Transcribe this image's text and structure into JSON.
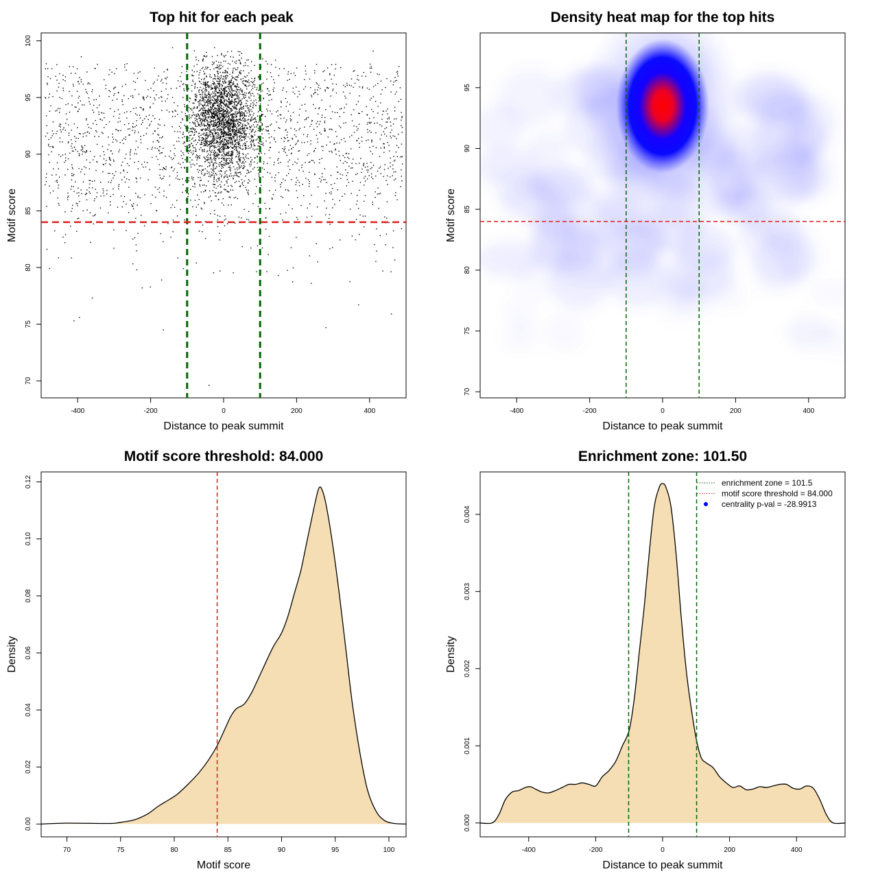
{
  "chart_data": [
    {
      "type": "scatter",
      "title": "Top hit for each peak",
      "xlabel": "Distance to peak summit",
      "ylabel": "Motif score",
      "xlim": [
        -500,
        500
      ],
      "ylim": [
        68.5,
        100.7
      ],
      "xticks": [
        -400,
        -200,
        0,
        200,
        400
      ],
      "yticks": [
        70,
        75,
        80,
        85,
        90,
        95,
        100
      ],
      "vlines": [
        -100,
        100
      ],
      "hline": 84,
      "colors": {
        "points": "#000000",
        "vlines": "#006400",
        "hline": "#dc1e1e"
      },
      "description": "Dense cluster centred near x=0, y~93 (sd ~45 in x, ~2.6 in y) over a uniform background of points spanning x -490..490 and y ~77..98; isolated points near (-165, 74.5), (-40, 69.6), (280, 74.7), (460, 76)",
      "points": [
        [
          -165,
          74.5
        ],
        [
          -40,
          69.6
        ],
        [
          280,
          74.7
        ],
        [
          460,
          75.9
        ],
        [
          -410,
          75.3
        ],
        [
          -395,
          75.6
        ],
        [
          370,
          76.7
        ],
        [
          -360,
          77.3
        ],
        [
          410,
          99.1
        ],
        [
          -25,
          99.4
        ],
        [
          -140,
          99.4
        ],
        [
          -390,
          98.6
        ],
        [
          -170,
          78.9
        ],
        [
          -110,
          79.9
        ],
        [
          -75,
          80.4
        ],
        [
          -10,
          79.7
        ],
        [
          150,
          79.3
        ],
        [
          240,
          78.6
        ]
      ],
      "cluster": {
        "x_center": 0,
        "y_center": 93,
        "x_sd": 45,
        "y_sd": 2.6,
        "n": 2400
      },
      "background": {
        "x_range": [
          -490,
          490
        ],
        "y_range": [
          77,
          98
        ],
        "n": 1900
      }
    },
    {
      "type": "heatmap",
      "title": "Density heat map for the top hits",
      "xlabel": "Distance to peak summit",
      "ylabel": "Motif score",
      "xlim": [
        -500,
        500
      ],
      "ylim": [
        69.5,
        99.5
      ],
      "xticks": [
        -400,
        -200,
        0,
        200,
        400
      ],
      "yticks": [
        70,
        75,
        80,
        85,
        90,
        95
      ],
      "vlines": [
        -100,
        100
      ],
      "hline": 84,
      "peak": {
        "x": 0,
        "y": 93.5
      },
      "colors": {
        "low": "#ffffff",
        "mid": "#0000ff",
        "high": "#ff0000",
        "vlines": "#006400",
        "hline": "#dc1e1e"
      }
    },
    {
      "type": "area",
      "title": "Motif score threshold: 84.000",
      "xlabel": "Motif score",
      "ylabel": "Density",
      "xlim": [
        67.6,
        101.6
      ],
      "ylim": [
        -0.0045,
        0.1235
      ],
      "xticks": [
        70,
        75,
        80,
        85,
        90,
        95,
        100
      ],
      "yticks": [
        0.0,
        0.02,
        0.04,
        0.06,
        0.08,
        0.1,
        0.12
      ],
      "ytick_labels": [
        "0.00",
        "0.02",
        "0.04",
        "0.06",
        "0.08",
        "0.10",
        "0.12"
      ],
      "vline": 84,
      "colors": {
        "fill": "#f5deb3",
        "line": "#000000",
        "vline": "#dc1e1e"
      },
      "x": [
        67.6,
        70,
        74,
        75,
        76.3,
        77.5,
        78.5,
        79.5,
        80.3,
        81.3,
        82.3,
        83.2,
        84,
        84.8,
        85.3,
        85.8,
        86.5,
        87.2,
        88.2,
        89.2,
        90,
        90.6,
        91.2,
        91.8,
        92.3,
        92.8,
        93.2,
        93.5,
        93.8,
        94.2,
        94.8,
        95.4,
        96,
        96.6,
        97.3,
        98,
        98.8,
        99.6,
        100.5,
        101.6
      ],
      "y": [
        0.0,
        0.0003,
        0.0002,
        0.0006,
        0.0015,
        0.0035,
        0.0062,
        0.0085,
        0.0105,
        0.014,
        0.018,
        0.0225,
        0.0275,
        0.034,
        0.038,
        0.0405,
        0.042,
        0.046,
        0.054,
        0.062,
        0.067,
        0.073,
        0.081,
        0.089,
        0.098,
        0.107,
        0.114,
        0.118,
        0.117,
        0.111,
        0.097,
        0.08,
        0.061,
        0.042,
        0.025,
        0.012,
        0.0045,
        0.0012,
        0.0002,
        0.0
      ]
    },
    {
      "type": "area",
      "title": "Enrichment zone: 101.50",
      "xlabel": "Distance to peak summit",
      "ylabel": "Density",
      "xlim": [
        -545,
        545
      ],
      "ylim": [
        -0.00018,
        0.00455
      ],
      "xticks": [
        -400,
        -200,
        0,
        200,
        400
      ],
      "yticks": [
        0.0,
        0.001,
        0.002,
        0.003,
        0.004
      ],
      "ytick_labels": [
        "0.000",
        "0.001",
        "0.002",
        "0.003",
        "0.004"
      ],
      "vlines": [
        -101.5,
        101.5
      ],
      "colors": {
        "fill": "#f5deb3",
        "line": "#000000",
        "vlines": "#006400",
        "threshold": "#dc1e1e",
        "marker": "#0000ff"
      },
      "legend": [
        {
          "label": "enrichment zone = 101.5",
          "style": "dotted",
          "color": "#006400"
        },
        {
          "label": "motif score threshold = 84.000",
          "style": "dotted",
          "color": "#dc1e1e"
        },
        {
          "label": "centrality p-val = -28.9913",
          "style": "point",
          "color": "#0000ff"
        }
      ],
      "legend_position": "top-right",
      "x": [
        -545,
        -510,
        -490,
        -470,
        -450,
        -430,
        -410,
        -395,
        -380,
        -360,
        -340,
        -320,
        -300,
        -280,
        -260,
        -240,
        -220,
        -200,
        -180,
        -160,
        -140,
        -120,
        -100,
        -85,
        -70,
        -55,
        -40,
        -25,
        -10,
        0,
        10,
        25,
        40,
        55,
        70,
        85,
        100,
        115,
        130,
        150,
        170,
        190,
        210,
        230,
        250,
        270,
        290,
        310,
        330,
        350,
        370,
        390,
        410,
        430,
        450,
        470,
        490,
        510,
        545
      ],
      "y": [
        0.0,
        0.0,
        0.0001,
        0.0003,
        0.0004,
        0.00042,
        0.00046,
        0.00047,
        0.00044,
        0.0004,
        0.00039,
        0.00042,
        0.00046,
        0.0005,
        0.0005,
        0.00052,
        0.0005,
        0.00048,
        0.0006,
        0.00068,
        0.0008,
        0.001,
        0.0012,
        0.0016,
        0.0022,
        0.0028,
        0.0035,
        0.0041,
        0.00435,
        0.0044,
        0.00435,
        0.0041,
        0.0035,
        0.0027,
        0.002,
        0.0015,
        0.0011,
        0.00085,
        0.00078,
        0.00072,
        0.0006,
        0.00052,
        0.00046,
        0.00048,
        0.00043,
        0.00044,
        0.00047,
        0.00046,
        0.00048,
        0.0005,
        0.0005,
        0.00045,
        0.00044,
        0.00048,
        0.00045,
        0.0003,
        0.0001,
        0.0,
        0.0
      ]
    }
  ]
}
